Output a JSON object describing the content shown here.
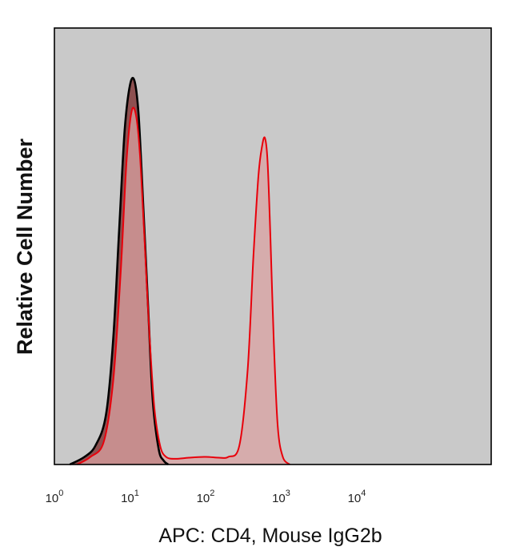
{
  "chart_data": {
    "type": "area",
    "title": "",
    "xlabel": "APC: CD4, Mouse IgG2b",
    "ylabel": "Relative Cell Number",
    "x_scale": "log",
    "xlim": [
      1,
      600000
    ],
    "ylim": [
      0,
      1.15
    ],
    "x_ticks": [
      {
        "value": 1,
        "base": "10",
        "exp": "0"
      },
      {
        "value": 10,
        "base": "10",
        "exp": "1"
      },
      {
        "value": 100,
        "base": "10",
        "exp": "2"
      },
      {
        "value": 1000,
        "base": "10",
        "exp": "3"
      },
      {
        "value": 10000,
        "base": "10",
        "exp": "4"
      }
    ],
    "grid": false,
    "legend": false,
    "plot_background": "#c9c9c9",
    "series": [
      {
        "color": "#000000",
        "fill": "#8a4a4a",
        "x": [
          1.6,
          2.5,
          3.5,
          4.8,
          6.0,
          7.2,
          8.5,
          10.0,
          11.5,
          13.0,
          15.0,
          17.5,
          20.0,
          24.0,
          28.0,
          32.0
        ],
        "values": [
          0.0,
          0.02,
          0.05,
          0.13,
          0.33,
          0.62,
          0.88,
          1.0,
          1.01,
          0.92,
          0.68,
          0.4,
          0.17,
          0.04,
          0.01,
          0.0
        ]
      },
      {
        "color": "#e8000b",
        "fill": "#d9a1a1",
        "x": [
          2.0,
          3.0,
          4.5,
          6.0,
          7.5,
          9.0,
          10.5,
          12.0,
          13.5,
          15.5,
          18.0,
          21.0,
          25.0,
          30.0,
          40.0,
          60.0,
          100.0,
          150.0,
          200.0,
          280.0,
          360.0,
          430.0,
          500.0,
          560.0,
          610.0,
          660.0,
          720.0,
          800.0,
          900.0,
          1050.0,
          1300.0
        ],
        "values": [
          0.0,
          0.02,
          0.06,
          0.22,
          0.5,
          0.8,
          0.93,
          0.92,
          0.82,
          0.6,
          0.35,
          0.15,
          0.05,
          0.02,
          0.015,
          0.018,
          0.02,
          0.018,
          0.02,
          0.05,
          0.25,
          0.55,
          0.76,
          0.84,
          0.86,
          0.8,
          0.6,
          0.32,
          0.1,
          0.02,
          0.0
        ]
      }
    ]
  }
}
